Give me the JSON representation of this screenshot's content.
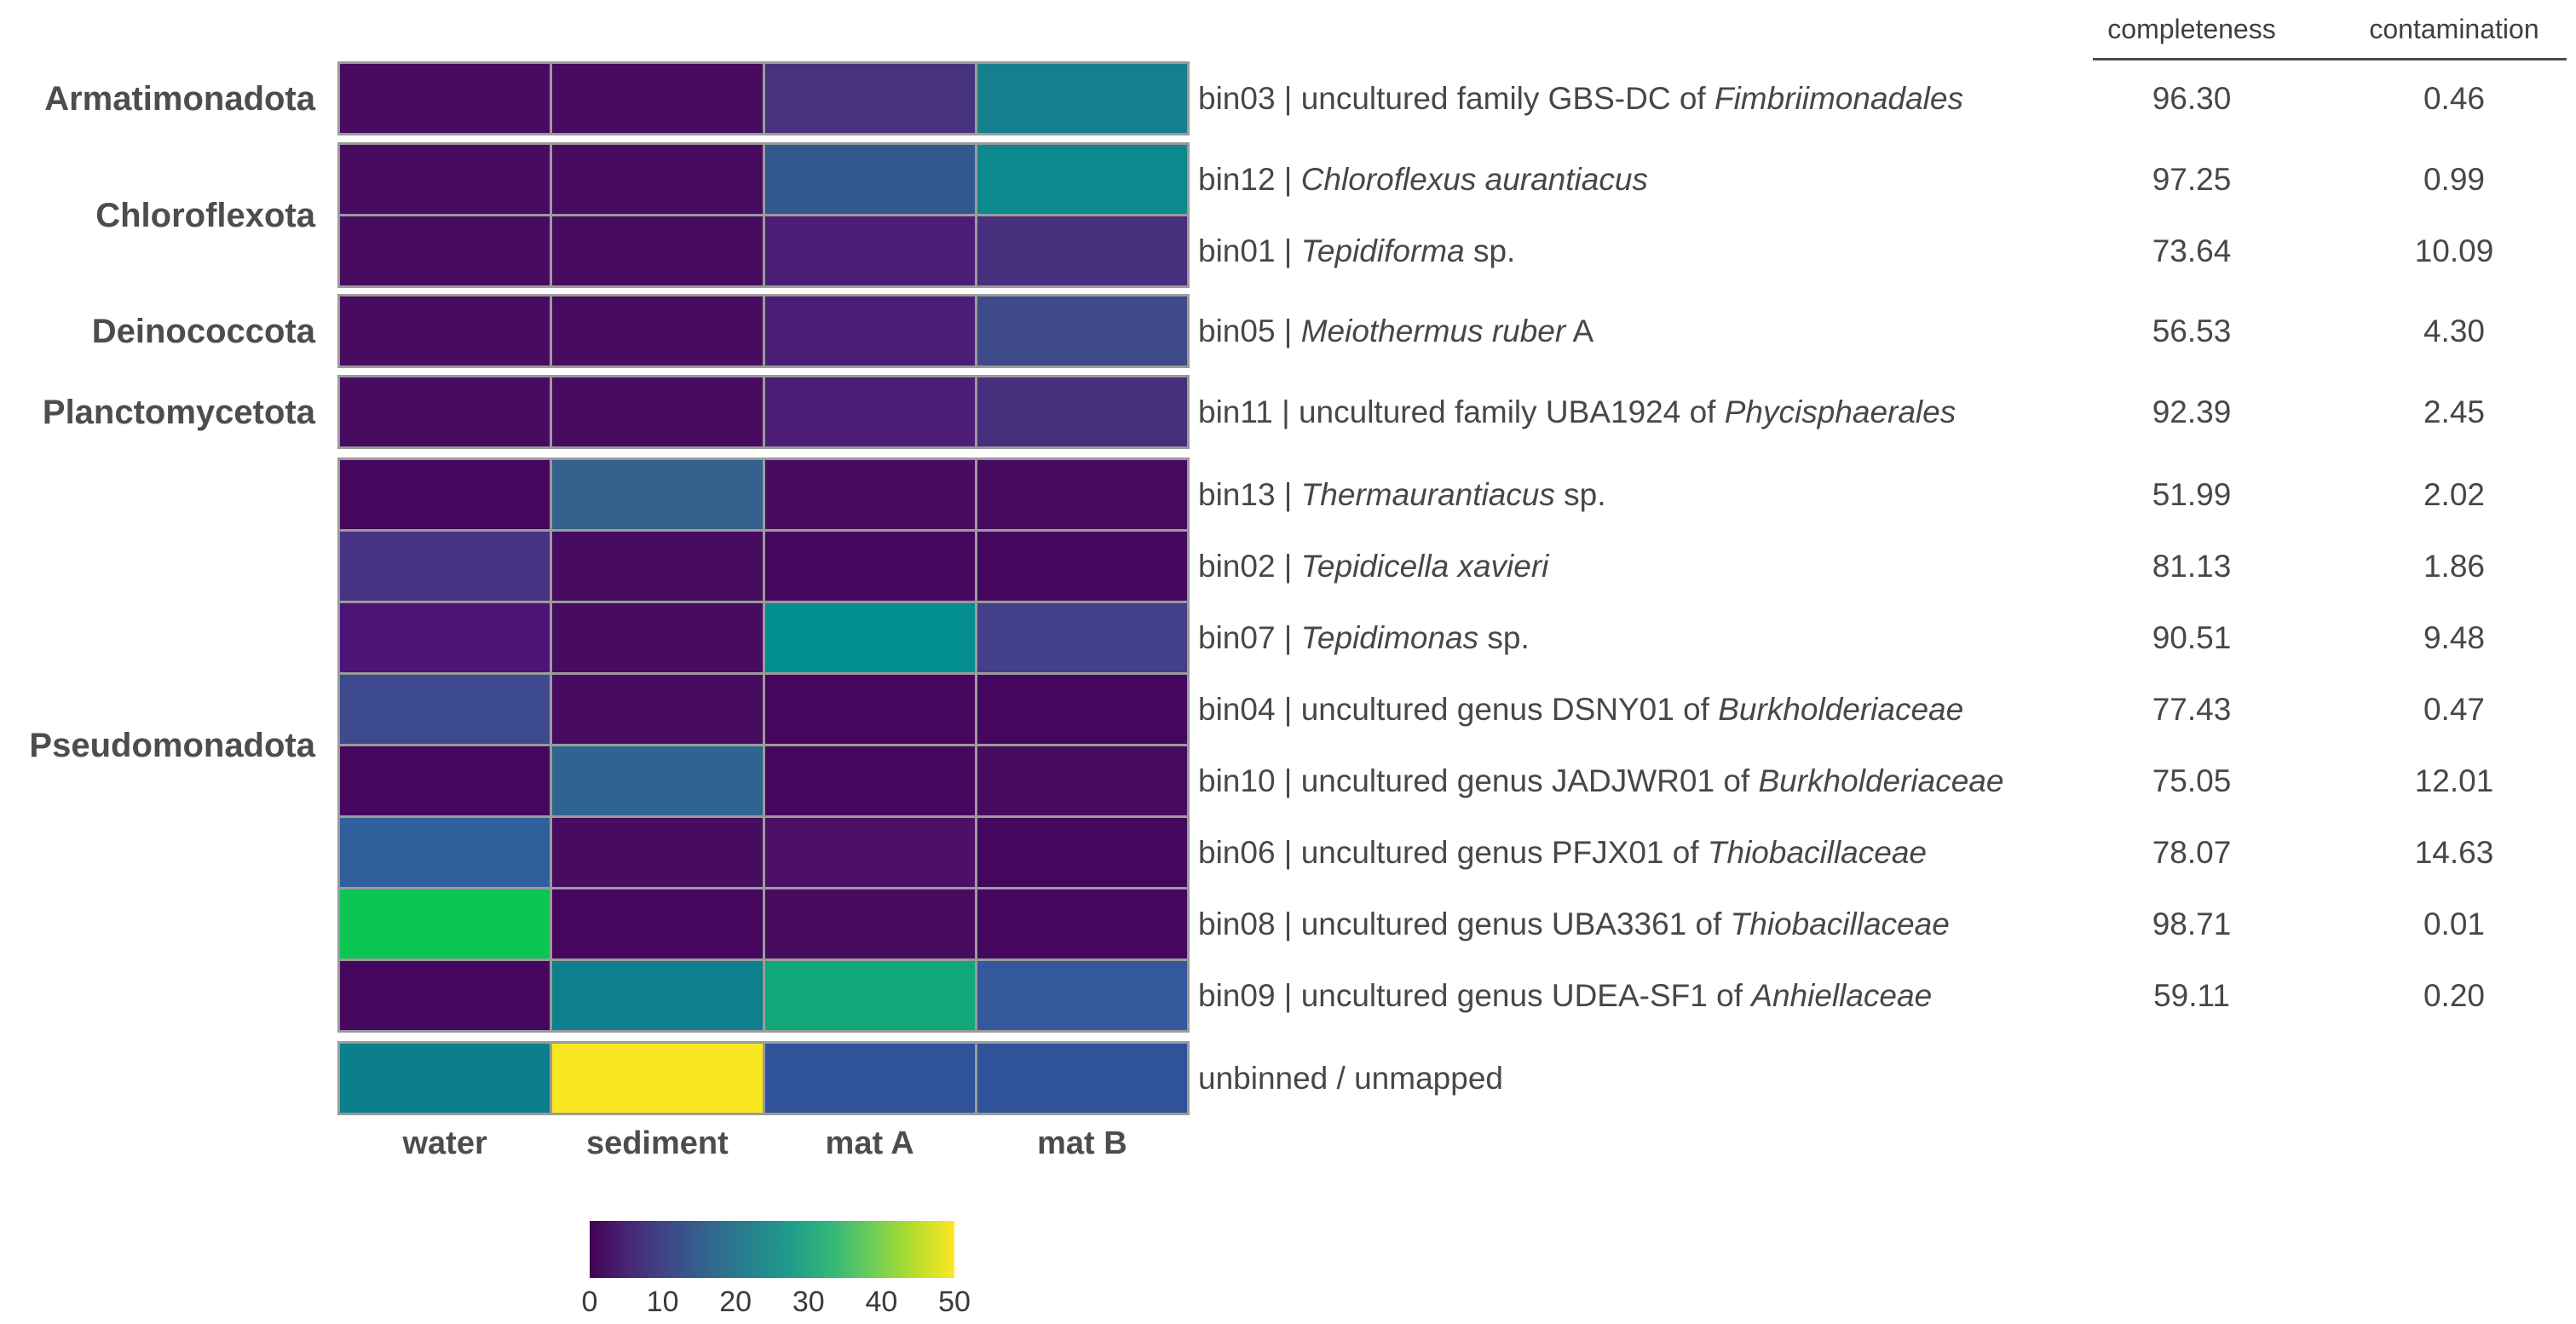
{
  "table_headers": {
    "completeness": "completeness",
    "contamination": "contamination"
  },
  "chart_data": {
    "type": "heatmap",
    "colormap": "viridis",
    "grid_color": "#9b9b9b",
    "columns": [
      "water",
      "sediment",
      "mat A",
      "mat B"
    ],
    "colorbar": {
      "min": 0,
      "max": 50,
      "ticks": [
        "0",
        "10",
        "20",
        "30",
        "40",
        "50"
      ],
      "gradient": [
        "#440154",
        "#482878",
        "#3e4989",
        "#31688e",
        "#26828e",
        "#1f9e89",
        "#35b779",
        "#6ece58",
        "#b5de2b",
        "#fde725"
      ]
    },
    "groups": [
      {
        "phylum": "Armatimonadota",
        "rows": [
          {
            "bin": "bin03",
            "label_pre": "bin03 | uncultured family GBS-DC of ",
            "label_italic": "Fimbriimonadales",
            "label_post": "",
            "completeness": "96.30",
            "contamination": "0.46",
            "values": [
              1,
              1,
              8,
              23
            ],
            "colors": [
              "#470b60",
              "#470b60",
              "#46327e",
              "#15808d"
            ]
          }
        ]
      },
      {
        "phylum": "Chloroflexota",
        "rows": [
          {
            "bin": "bin12",
            "label_pre": "bin12 | ",
            "label_italic": "Chloroflexus aurantiacus",
            "label_post": "",
            "completeness": "97.25",
            "contamination": "0.99",
            "values": [
              1,
              1,
              14,
              24
            ],
            "colors": [
              "#470b60",
              "#470b60",
              "#33578f",
              "#0b898c"
            ]
          },
          {
            "bin": "bin01",
            "label_pre": "bin01 | ",
            "label_italic": "Tepidiforma",
            "label_post": " sp.",
            "completeness": "73.64",
            "contamination": "10.09",
            "values": [
              1,
              1,
              5,
              7
            ],
            "colors": [
              "#470b60",
              "#470b60",
              "#4c1d76",
              "#472f7d"
            ]
          }
        ]
      },
      {
        "phylum": "Deinococcota",
        "rows": [
          {
            "bin": "bin05",
            "label_pre": "bin05 | ",
            "label_italic": "Meiothermus ruber",
            "label_post": " A",
            "completeness": "56.53",
            "contamination": "4.30",
            "values": [
              1,
              1,
              5,
              10
            ],
            "colors": [
              "#470b60",
              "#470b60",
              "#4c1d76",
              "#3f4a8a"
            ]
          }
        ]
      },
      {
        "phylum": "Planctomycetota",
        "rows": [
          {
            "bin": "bin11",
            "label_pre": "bin11 | uncultured family UBA1924 of ",
            "label_italic": "Phycisphaerales",
            "label_post": "",
            "completeness": "92.39",
            "contamination": "2.45",
            "values": [
              1,
              1,
              5,
              8
            ],
            "colors": [
              "#470b60",
              "#470b60",
              "#4c1d76",
              "#46307e"
            ]
          }
        ]
      },
      {
        "phylum": "Pseudomonadota",
        "rows": [
          {
            "bin": "bin13",
            "label_pre": "bin13 | ",
            "label_italic": "Thermaurantiacus",
            "label_post": " sp.",
            "completeness": "51.99",
            "contamination": "2.02",
            "values": [
              0.5,
              15,
              1,
              1
            ],
            "colors": [
              "#45075e",
              "#35618f",
              "#470b60",
              "#470b60"
            ]
          },
          {
            "bin": "bin02",
            "label_pre": "bin02 | ",
            "label_italic": "Tepidicella xavieri",
            "label_post": "",
            "completeness": "81.13",
            "contamination": "1.86",
            "values": [
              8,
              1,
              0.5,
              0.5
            ],
            "colors": [
              "#463384",
              "#470b60",
              "#45075e",
              "#45075e"
            ]
          },
          {
            "bin": "bin07",
            "label_pre": "bin07 | ",
            "label_italic": "Tepidimonas",
            "label_post": " sp.",
            "completeness": "90.51",
            "contamination": "9.48",
            "values": [
              4,
              1,
              24,
              9
            ],
            "colors": [
              "#4f1377",
              "#470b60",
              "#028e8e",
              "#433f88"
            ]
          },
          {
            "bin": "bin04",
            "label_pre": "bin04 | uncultured genus DSNY01 of ",
            "label_italic": "Burkholderiaceae",
            "label_post": "",
            "completeness": "77.43",
            "contamination": "0.47",
            "values": [
              11,
              1,
              0.5,
              0.5
            ],
            "colors": [
              "#3e4a8e",
              "#470b60",
              "#45075e",
              "#45075e"
            ]
          },
          {
            "bin": "bin10",
            "label_pre": "bin10 | uncultured genus JADJWR01 of ",
            "label_italic": "Burkholderiaceae",
            "label_post": "",
            "completeness": "75.05",
            "contamination": "12.01",
            "values": [
              0.5,
              16,
              0.5,
              1
            ],
            "colors": [
              "#45075e",
              "#2f6490",
              "#45075e",
              "#470b60"
            ]
          },
          {
            "bin": "bin06",
            "label_pre": "bin06 | uncultured genus PFJX01 of ",
            "label_italic": "Thiobacillaceae",
            "label_post": "",
            "completeness": "78.07",
            "contamination": "14.63",
            "values": [
              16,
              1,
              3,
              0.5
            ],
            "colors": [
              "#30609c",
              "#470b60",
              "#4c1069",
              "#45075e"
            ]
          },
          {
            "bin": "bin08",
            "label_pre": "bin08 | uncultured genus UBA3361 of ",
            "label_italic": "Thiobacillaceae",
            "label_post": "",
            "completeness": "98.71",
            "contamination": "0.01",
            "values": [
              40,
              0.5,
              1,
              0.5
            ],
            "colors": [
              "#0cc653",
              "#45075e",
              "#470b60",
              "#45075e"
            ]
          },
          {
            "bin": "bin09",
            "label_pre": "bin09 | uncultured genus UDEA-SF1 of ",
            "label_italic": "Anhiellaceae",
            "label_post": "",
            "completeness": "59.11",
            "contamination": "0.20",
            "values": [
              0.5,
              23,
              31,
              15
            ],
            "colors": [
              "#45075e",
              "#0e7f8c",
              "#10a878",
              "#33589c"
            ]
          }
        ]
      },
      {
        "phylum": "",
        "rows": [
          {
            "bin": "unbinned",
            "label_pre": "unbinned / unmapped",
            "label_italic": "",
            "label_post": "",
            "completeness": null,
            "contamination": null,
            "values": [
              23,
              50,
              14,
              14
            ],
            "colors": [
              "#0b7f8b",
              "#f8e621",
              "#2f5299",
              "#2f5299"
            ]
          }
        ]
      }
    ]
  }
}
